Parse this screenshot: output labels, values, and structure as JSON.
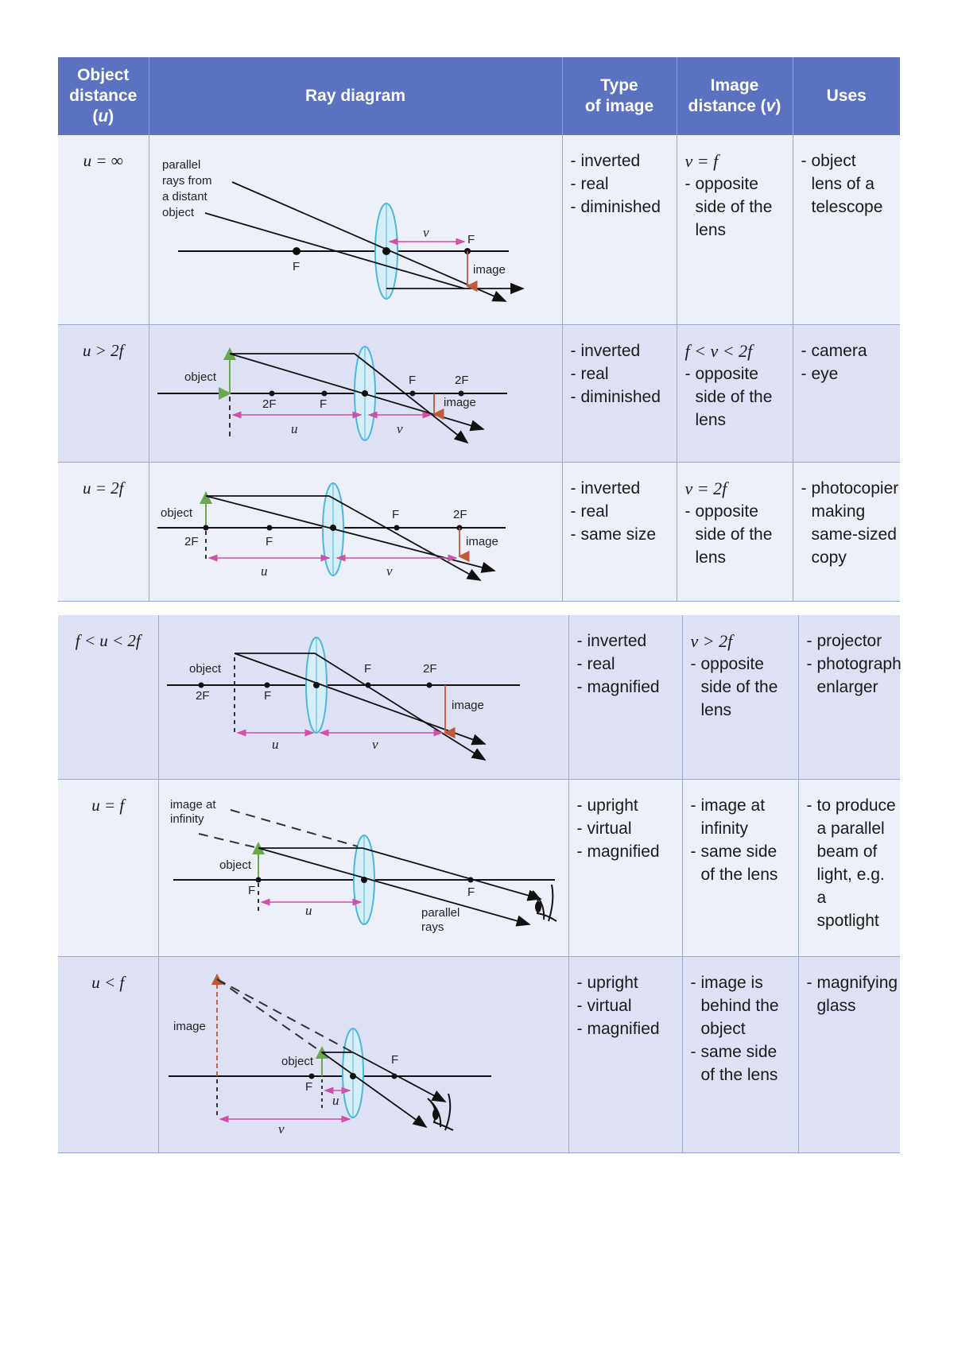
{
  "header": {
    "object_distance": "Object distance (u)",
    "ray_diagram": "Ray diagram",
    "type_of_image": "Type of image",
    "image_distance": "Image distance (v)",
    "uses": "Uses"
  },
  "rows": [
    {
      "u": "u = ∞",
      "labels": {
        "parallel": "parallel rays from a distant object",
        "v": "v",
        "F1": "F",
        "F2": "F",
        "image": "image"
      },
      "type": [
        "inverted",
        "real",
        "diminished"
      ],
      "v_first": "v = f",
      "v_items": [
        "opposite",
        "side of the",
        "lens"
      ],
      "uses": [
        "object",
        "lens of a",
        "telescope"
      ]
    },
    {
      "u": "u > 2f",
      "labels": {
        "object": "object",
        "2F_left": "2F",
        "F_left": "F",
        "F_right": "F",
        "2F_right": "2F",
        "image": "image",
        "u": "u",
        "v": "v"
      },
      "type": [
        "inverted",
        "real",
        "diminished"
      ],
      "v_first": "f < v < 2f",
      "v_items": [
        "opposite",
        "side of the",
        "lens"
      ],
      "uses": [
        "camera",
        "eye"
      ]
    },
    {
      "u": "u = 2f",
      "labels": {
        "object": "object",
        "2F_left": "2F",
        "F_left": "F",
        "F_right": "F",
        "2F_right": "2F",
        "image": "image",
        "u": "u",
        "v": "v"
      },
      "type": [
        "inverted",
        "real",
        "same size"
      ],
      "v_first": "v = 2f",
      "v_items": [
        "opposite",
        "side of the",
        "lens"
      ],
      "uses": [
        "photocopier",
        "making",
        "same-sized",
        "copy"
      ]
    },
    {
      "u": "f < u < 2f",
      "labels": {
        "object": "object",
        "2F_left": "2F",
        "F_left": "F",
        "F_right": "F",
        "2F_right": "2F",
        "image": "image",
        "u": "u",
        "v": "v"
      },
      "type": [
        "inverted",
        "real",
        "magnified"
      ],
      "v_first": "v > 2f",
      "v_items": [
        "opposite",
        "side of the",
        "lens"
      ],
      "uses": [
        "projector",
        "photograph",
        "enlarger"
      ]
    },
    {
      "u": "u = f",
      "labels": {
        "image_at_infinity": "image at infinity",
        "object": "object",
        "F_left": "F",
        "F_right": "F",
        "u": "u",
        "parallel_rays": "parallel rays"
      },
      "type": [
        "upright",
        "virtual",
        "magnified"
      ],
      "v_first": "",
      "v_items": [
        "image at",
        "infinity",
        "same side",
        "of the lens"
      ],
      "uses": [
        "to produce",
        "a parallel",
        "beam of",
        "light, e.g. a",
        "spotlight"
      ]
    },
    {
      "u": "u < f",
      "labels": {
        "image": "image",
        "object": "object",
        "F_left": "F",
        "F_right": "F",
        "u": "u",
        "v": "v"
      },
      "type": [
        "upright",
        "virtual",
        "magnified"
      ],
      "v_first": "",
      "v_items": [
        "image is",
        "behind the",
        "object",
        "same side",
        "of the lens"
      ],
      "uses": [
        "magnifying",
        "glass"
      ]
    }
  ],
  "colors": {
    "header": "#5a72bf",
    "row_light": "#eef0f9",
    "row_dark": "#dde1f3",
    "lens": "#4fb6dc",
    "object_arrow": "#6aa84f",
    "image_arrow": "#c0583a",
    "distance": "#d04fa8"
  }
}
